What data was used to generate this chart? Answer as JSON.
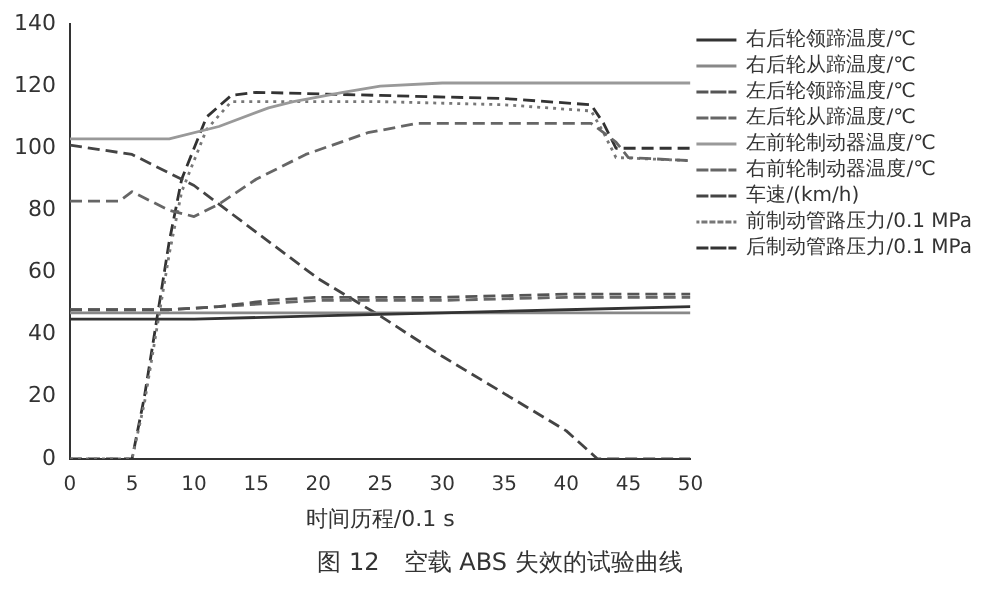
{
  "chart_data": {
    "type": "line",
    "title": "图 12　空载 ABS 失效的试验曲线",
    "xlabel": "时间历程/0.1 s",
    "xlim": [
      0,
      50
    ],
    "xticks": [
      0,
      5,
      10,
      15,
      20,
      25,
      30,
      35,
      40,
      45,
      50
    ],
    "ylim": [
      0,
      140
    ],
    "yticks": [
      0,
      20,
      40,
      60,
      80,
      100,
      120,
      140
    ],
    "grid": false,
    "legend": "right",
    "marker": "none",
    "series": [
      {
        "name": "右后轮领蹄温度/℃",
        "color": "#333333",
        "line_style": "solid",
        "x": [
          0,
          10,
          20,
          30,
          40,
          50
        ],
        "values": [
          45,
          45,
          46,
          47,
          48,
          49
        ]
      },
      {
        "name": "右后轮从蹄温度/℃",
        "color": "#888888",
        "line_style": "solid",
        "x": [
          0,
          10,
          20,
          30,
          40,
          50
        ],
        "values": [
          47,
          47,
          47,
          47,
          47,
          47
        ]
      },
      {
        "name": "左后轮领蹄温度/℃",
        "color": "#555555",
        "line_style": "dashed",
        "x": [
          0,
          8,
          12,
          16,
          20,
          30,
          40,
          50
        ],
        "values": [
          48,
          48,
          49,
          51,
          52,
          52,
          53,
          53
        ]
      },
      {
        "name": "左后轮从蹄温度/℃",
        "color": "#666666",
        "line_style": "dashed",
        "x": [
          0,
          8,
          12,
          16,
          20,
          30,
          40,
          50
        ],
        "values": [
          48,
          48,
          49,
          50,
          51,
          51,
          52,
          52
        ]
      },
      {
        "name": "左前轮制动器温度/℃",
        "color": "#999999",
        "line_style": "solid",
        "x": [
          0,
          8,
          12,
          16,
          18,
          22,
          25,
          30,
          50
        ],
        "values": [
          103,
          103,
          107,
          113,
          115,
          118,
          120,
          121,
          121
        ]
      },
      {
        "name": "右前轮制动器温度/℃",
        "color": "#666666",
        "line_style": "dashed",
        "x": [
          0,
          4,
          5,
          8,
          10,
          12,
          15,
          19,
          24,
          28,
          42,
          44,
          45,
          50
        ],
        "values": [
          83,
          83,
          86,
          80,
          78,
          82,
          90,
          98,
          105,
          108,
          108,
          102,
          97,
          96
        ]
      },
      {
        "name": "车速/(km/h)",
        "color": "#444444",
        "line_style": "dashed",
        "x": [
          0,
          5,
          10,
          15,
          20,
          25,
          30,
          35,
          40,
          42.5,
          45,
          50
        ],
        "values": [
          101,
          98,
          88,
          73,
          58,
          46,
          33,
          21,
          9,
          0,
          0,
          0
        ]
      },
      {
        "name": "前制动管路压力/0.1 MPa",
        "color": "#777777",
        "line_style": "dotted",
        "x": [
          0,
          5,
          6,
          7,
          8,
          9,
          11,
          13,
          25,
          35,
          42,
          43,
          44,
          50
        ],
        "values": [
          0,
          0,
          18,
          42,
          66,
          86,
          106,
          115,
          115,
          114,
          112,
          105,
          97,
          96
        ]
      },
      {
        "name": "后制动管路压力/0.1 MPa",
        "color": "#333333",
        "line_style": "dashed",
        "x": [
          0,
          5,
          6,
          7,
          8,
          9,
          11,
          13,
          15,
          25,
          35,
          42,
          43,
          44,
          50
        ],
        "values": [
          0,
          0,
          20,
          45,
          70,
          90,
          110,
          117,
          118,
          117,
          116,
          114,
          108,
          100,
          100
        ]
      }
    ]
  }
}
